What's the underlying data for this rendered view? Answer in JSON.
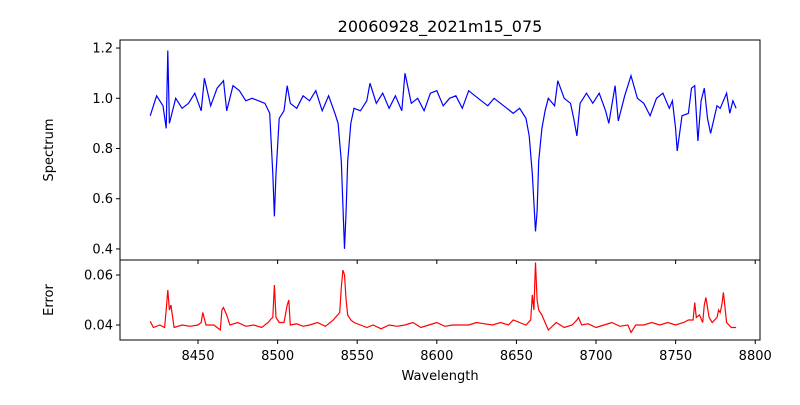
{
  "chart_data": [
    {
      "type": "line",
      "title": "20060928_2021m15_075",
      "xlabel": "Wavelength",
      "ylabel": "Spectrum",
      "xlim": [
        8401,
        8803
      ],
      "ylim": [
        0.356,
        1.232
      ],
      "xticks": [
        8450,
        8500,
        8550,
        8600,
        8650,
        8700,
        8750,
        8800
      ],
      "yticks": [
        0.4,
        0.6,
        0.8,
        1.0,
        1.2
      ],
      "ytick_labels": [
        "0.4",
        "0.6",
        "0.8",
        "1.0",
        "1.2"
      ],
      "color": "#0000ff",
      "series": [
        {
          "name": "Spectrum",
          "x": [
            8420,
            8424,
            8428,
            8430,
            8431,
            8432,
            8436,
            8440,
            8444,
            8448,
            8452,
            8454,
            8458,
            8462,
            8466,
            8468,
            8472,
            8476,
            8480,
            8484,
            8488,
            8492,
            8495,
            8497,
            8498,
            8499,
            8501,
            8504,
            8506,
            8508,
            8512,
            8516,
            8520,
            8524,
            8528,
            8532,
            8536,
            8538,
            8540,
            8542,
            8543,
            8544,
            8546,
            8548,
            8552,
            8556,
            8558,
            8562,
            8566,
            8570,
            8574,
            8578,
            8580,
            8584,
            8588,
            8592,
            8596,
            8600,
            8604,
            8608,
            8612,
            8616,
            8620,
            8624,
            8628,
            8632,
            8636,
            8640,
            8644,
            8648,
            8652,
            8656,
            8658,
            8660,
            8662,
            8663,
            8664,
            8666,
            8668,
            8670,
            8674,
            8676,
            8680,
            8684,
            8686,
            8688,
            8690,
            8694,
            8698,
            8702,
            8706,
            8708,
            8712,
            8714,
            8718,
            8722,
            8726,
            8730,
            8734,
            8738,
            8742,
            8746,
            8748,
            8750,
            8751,
            8754,
            8758,
            8760,
            8762,
            8764,
            8766,
            8768,
            8770,
            8772,
            8776,
            8778,
            8782,
            8784,
            8786,
            8788
          ],
          "y": [
            0.93,
            1.01,
            0.97,
            0.88,
            1.19,
            0.9,
            1.0,
            0.96,
            0.98,
            1.02,
            0.95,
            1.08,
            0.97,
            1.04,
            1.07,
            0.95,
            1.05,
            1.03,
            0.99,
            1.0,
            0.99,
            0.98,
            0.94,
            0.7,
            0.53,
            0.7,
            0.92,
            0.95,
            1.05,
            0.98,
            0.96,
            1.01,
            0.99,
            1.03,
            0.95,
            1.01,
            0.94,
            0.9,
            0.75,
            0.4,
            0.55,
            0.75,
            0.9,
            0.96,
            0.95,
            0.99,
            1.06,
            0.98,
            1.02,
            0.96,
            1.01,
            0.95,
            1.1,
            0.98,
            1.0,
            0.95,
            1.02,
            1.03,
            0.97,
            1.0,
            1.01,
            0.96,
            1.03,
            1.01,
            0.99,
            0.97,
            1.0,
            0.98,
            0.96,
            0.94,
            0.96,
            0.92,
            0.85,
            0.7,
            0.47,
            0.55,
            0.75,
            0.88,
            0.95,
            1.0,
            0.97,
            1.07,
            1.0,
            0.98,
            0.92,
            0.85,
            0.98,
            1.02,
            0.98,
            1.02,
            0.95,
            0.9,
            1.05,
            0.91,
            1.01,
            1.09,
            1.0,
            0.98,
            0.93,
            1.0,
            1.02,
            0.96,
            0.99,
            0.88,
            0.79,
            0.93,
            0.94,
            1.04,
            1.05,
            0.83,
            0.99,
            1.04,
            0.92,
            0.86,
            0.97,
            0.96,
            1.02,
            0.94,
            0.99,
            0.96
          ]
        }
      ]
    },
    {
      "type": "line",
      "xlabel": "Wavelength",
      "ylabel": "Error",
      "xlim": [
        8401,
        8803
      ],
      "ylim": [
        0.034,
        0.066
      ],
      "xticks": [
        8450,
        8500,
        8550,
        8600,
        8650,
        8700,
        8750,
        8800
      ],
      "xtick_labels": [
        "8450",
        "8500",
        "8550",
        "8600",
        "8650",
        "8700",
        "8750",
        "8800"
      ],
      "yticks": [
        0.04,
        0.06
      ],
      "ytick_labels": [
        "0.04",
        "0.06"
      ],
      "color": "#ff0000",
      "series": [
        {
          "name": "Error",
          "x": [
            8420,
            8422,
            8426,
            8429,
            8430,
            8431,
            8432,
            8433,
            8435,
            8440,
            8445,
            8450,
            8452,
            8453,
            8455,
            8460,
            8464,
            8465,
            8466,
            8468,
            8470,
            8475,
            8480,
            8485,
            8490,
            8494,
            8496,
            8497,
            8498,
            8499,
            8501,
            8504,
            8506,
            8507,
            8508,
            8512,
            8516,
            8520,
            8525,
            8530,
            8535,
            8539,
            8540,
            8541,
            8542,
            8543,
            8544,
            8546,
            8548,
            8552,
            8556,
            8560,
            8565,
            8570,
            8575,
            8580,
            8585,
            8590,
            8595,
            8600,
            8605,
            8610,
            8615,
            8620,
            8625,
            8630,
            8635,
            8640,
            8645,
            8648,
            8652,
            8656,
            8659,
            8660,
            8661,
            8662,
            8663,
            8664,
            8666,
            8668,
            8670,
            8675,
            8680,
            8685,
            8688,
            8689,
            8691,
            8695,
            8700,
            8705,
            8710,
            8715,
            8720,
            8722,
            8725,
            8730,
            8735,
            8740,
            8745,
            8750,
            8755,
            8758,
            8761,
            8762,
            8763,
            8765,
            8767,
            8768,
            8769,
            8771,
            8773,
            8776,
            8777,
            8778,
            8779,
            8780,
            8782,
            8785,
            8788
          ],
          "y": [
            0.0415,
            0.039,
            0.04,
            0.039,
            0.046,
            0.054,
            0.046,
            0.048,
            0.039,
            0.04,
            0.0395,
            0.04,
            0.041,
            0.045,
            0.04,
            0.04,
            0.038,
            0.046,
            0.047,
            0.044,
            0.04,
            0.041,
            0.0395,
            0.04,
            0.039,
            0.041,
            0.0425,
            0.043,
            0.056,
            0.043,
            0.041,
            0.041,
            0.048,
            0.05,
            0.04,
            0.0405,
            0.0395,
            0.04,
            0.041,
            0.0395,
            0.042,
            0.045,
            0.055,
            0.062,
            0.06,
            0.05,
            0.044,
            0.042,
            0.041,
            0.04,
            0.039,
            0.04,
            0.0385,
            0.04,
            0.0395,
            0.04,
            0.041,
            0.039,
            0.04,
            0.041,
            0.0395,
            0.04,
            0.04,
            0.04,
            0.041,
            0.0405,
            0.04,
            0.041,
            0.04,
            0.042,
            0.041,
            0.04,
            0.042,
            0.052,
            0.046,
            0.065,
            0.05,
            0.046,
            0.044,
            0.041,
            0.038,
            0.041,
            0.039,
            0.04,
            0.042,
            0.043,
            0.04,
            0.0405,
            0.039,
            0.04,
            0.041,
            0.0395,
            0.04,
            0.037,
            0.04,
            0.04,
            0.041,
            0.04,
            0.041,
            0.04,
            0.041,
            0.042,
            0.042,
            0.049,
            0.043,
            0.044,
            0.041,
            0.048,
            0.051,
            0.043,
            0.041,
            0.043,
            0.046,
            0.045,
            0.048,
            0.053,
            0.041,
            0.039,
            0.039
          ]
        }
      ]
    }
  ]
}
